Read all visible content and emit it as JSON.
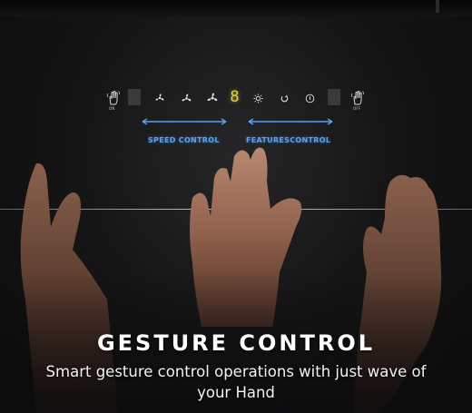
{
  "panel": {
    "on_label": "ON",
    "off_label": "OFF",
    "speed_display": "8",
    "icons": [
      "hand-wave-icon",
      "fan-speed-1-icon",
      "fan-speed-2-icon",
      "fan-speed-3-icon",
      "light-icon",
      "timer-icon",
      "power-icon",
      "hand-wave-icon"
    ]
  },
  "labels": {
    "speed_control": "SPEED CONTROL",
    "features_control": "FEATURESCONTROL"
  },
  "headline": {
    "title": "GESTURE CONTROL",
    "subtitle": "Smart gesture control operations with just wave of your Hand"
  },
  "colors": {
    "accent_blue": "#5aa0ef",
    "display_yellow": "#e0d44a",
    "background": "#0c0c0d"
  }
}
